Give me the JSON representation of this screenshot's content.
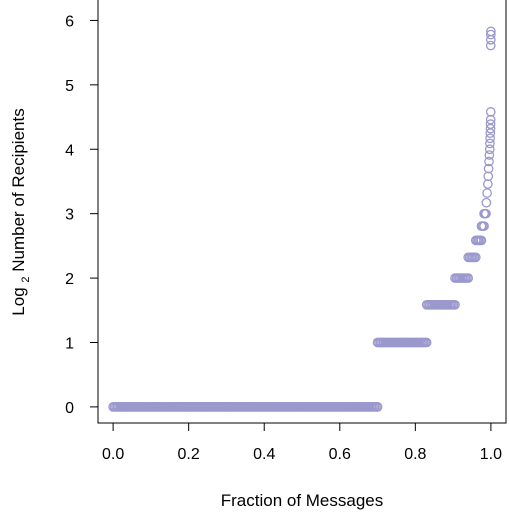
{
  "chart_data": {
    "type": "scatter",
    "title": "",
    "xlabel": "Fraction of Messages",
    "ylabel_parts": {
      "base": "Log",
      "subscript": "2",
      "rest": " Number of Recipients"
    },
    "xlim": [
      -0.04,
      1.04
    ],
    "ylim": [
      -0.25,
      6.1
    ],
    "xticks": [
      0.0,
      0.2,
      0.4,
      0.6,
      0.8,
      1.0
    ],
    "xtick_labels": [
      "0.0",
      "0.2",
      "0.4",
      "0.6",
      "0.8",
      "1.0"
    ],
    "yticks": [
      0,
      1,
      2,
      3,
      4,
      5,
      6
    ],
    "ytick_labels": [
      "0",
      "1",
      "2",
      "3",
      "4",
      "5",
      "6"
    ],
    "point_color": "#9a98cc",
    "marker": "open-circle",
    "grid": false,
    "legend": "none",
    "segments": [
      {
        "y": 0,
        "x_start": 0.0,
        "x_end": 0.7
      },
      {
        "y": 1,
        "x_start": 0.7,
        "x_end": 0.83
      },
      {
        "y": 1.585,
        "x_start": 0.83,
        "x_end": 0.905
      },
      {
        "y": 2,
        "x_start": 0.905,
        "x_end": 0.94
      },
      {
        "y": 2.322,
        "x_start": 0.94,
        "x_end": 0.96
      },
      {
        "y": 2.585,
        "x_start": 0.96,
        "x_end": 0.975
      },
      {
        "y": 2.807,
        "x_start": 0.975,
        "x_end": 0.982
      },
      {
        "y": 3.0,
        "x_start": 0.982,
        "x_end": 0.987
      }
    ],
    "points": [
      {
        "x": 0.988,
        "y": 3.17
      },
      {
        "x": 0.99,
        "y": 3.32
      },
      {
        "x": 0.992,
        "y": 3.46
      },
      {
        "x": 0.993,
        "y": 3.58
      },
      {
        "x": 0.994,
        "y": 3.7
      },
      {
        "x": 0.995,
        "y": 3.81
      },
      {
        "x": 0.996,
        "y": 3.91
      },
      {
        "x": 0.997,
        "y": 4.0
      },
      {
        "x": 0.9975,
        "y": 4.09
      },
      {
        "x": 0.998,
        "y": 4.17
      },
      {
        "x": 0.9985,
        "y": 4.25
      },
      {
        "x": 0.999,
        "y": 4.32
      },
      {
        "x": 0.9992,
        "y": 4.39
      },
      {
        "x": 0.9994,
        "y": 4.46
      },
      {
        "x": 0.9996,
        "y": 4.58
      },
      {
        "x": 0.9997,
        "y": 5.61
      },
      {
        "x": 0.9998,
        "y": 5.7
      },
      {
        "x": 0.9999,
        "y": 5.78
      },
      {
        "x": 1.0,
        "y": 5.83
      }
    ]
  }
}
